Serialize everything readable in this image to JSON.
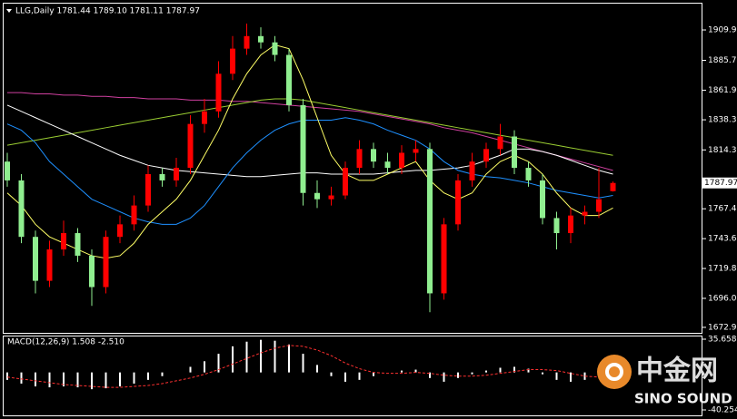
{
  "chart_data": [
    {
      "type": "candlestick",
      "title": "LLG,Daily  1781.44 1789.10 1781.11 1787.97",
      "up_color": "#ff0000",
      "down_color": "#90ee90",
      "open": [
        1805,
        1790,
        1745,
        1710,
        1735,
        1748,
        1730,
        1705,
        1745,
        1755,
        1770,
        1795,
        1790,
        1800,
        1835,
        1845,
        1875,
        1895,
        1905,
        1900,
        1890,
        1850,
        1780,
        1775,
        1778,
        1800,
        1815,
        1805,
        1800,
        1812,
        1815,
        1700,
        1755,
        1790,
        1805,
        1815,
        1825,
        1800,
        1790,
        1760,
        1748,
        1762,
        1765,
        1781.44
      ],
      "high": [
        1812,
        1795,
        1750,
        1742,
        1758,
        1752,
        1735,
        1750,
        1762,
        1778,
        1802,
        1800,
        1808,
        1842,
        1855,
        1885,
        1905,
        1915,
        1912,
        1905,
        1895,
        1855,
        1790,
        1785,
        1805,
        1822,
        1820,
        1812,
        1818,
        1822,
        1820,
        1760,
        1795,
        1812,
        1820,
        1835,
        1830,
        1805,
        1795,
        1765,
        1768,
        1770,
        1800,
        1789.1
      ],
      "low": [
        1785,
        1740,
        1700,
        1705,
        1730,
        1725,
        1690,
        1700,
        1740,
        1750,
        1765,
        1785,
        1785,
        1795,
        1828,
        1840,
        1870,
        1890,
        1895,
        1885,
        1845,
        1770,
        1768,
        1770,
        1775,
        1795,
        1800,
        1795,
        1795,
        1805,
        1685,
        1695,
        1750,
        1785,
        1800,
        1810,
        1795,
        1785,
        1755,
        1735,
        1740,
        1755,
        1760,
        1781.11
      ],
      "close": [
        1790,
        1745,
        1710,
        1735,
        1748,
        1730,
        1705,
        1745,
        1755,
        1770,
        1795,
        1790,
        1800,
        1835,
        1845,
        1875,
        1895,
        1905,
        1900,
        1890,
        1850,
        1780,
        1775,
        1778,
        1800,
        1815,
        1805,
        1800,
        1812,
        1815,
        1700,
        1755,
        1790,
        1805,
        1815,
        1825,
        1800,
        1790,
        1760,
        1748,
        1762,
        1765,
        1775,
        1787.97
      ],
      "series": [
        {
          "color": "#d040a0",
          "values": [
            1860,
            1860,
            1859,
            1859,
            1858,
            1858,
            1857,
            1857,
            1856,
            1856,
            1855,
            1855,
            1855,
            1854,
            1854,
            1854,
            1853,
            1853,
            1852,
            1851,
            1850,
            1849,
            1848,
            1847,
            1846,
            1845,
            1843,
            1841,
            1839,
            1837,
            1835,
            1832,
            1830,
            1828,
            1825,
            1822,
            1819,
            1816,
            1813,
            1810,
            1807,
            1804,
            1801,
            1798
          ]
        },
        {
          "color": "#9acd32",
          "values": [
            1818,
            1820,
            1822,
            1824,
            1826,
            1828,
            1830,
            1832,
            1834,
            1836,
            1838,
            1840,
            1842,
            1844,
            1846,
            1848,
            1850,
            1852,
            1854,
            1855,
            1855,
            1854,
            1852,
            1850,
            1848,
            1846,
            1844,
            1842,
            1840,
            1838,
            1836,
            1834,
            1832,
            1830,
            1828,
            1826,
            1824,
            1822,
            1820,
            1818,
            1816,
            1814,
            1812,
            1810
          ]
        },
        {
          "color": "#ffffff",
          "values": [
            1850,
            1845,
            1840,
            1835,
            1830,
            1825,
            1820,
            1815,
            1810,
            1806,
            1802,
            1800,
            1798,
            1797,
            1796,
            1795,
            1794,
            1793,
            1793,
            1794,
            1795,
            1796,
            1796,
            1795,
            1795,
            1795,
            1795,
            1796,
            1797,
            1798,
            1798,
            1799,
            1800,
            1802,
            1806,
            1810,
            1815,
            1815,
            1813,
            1810,
            1806,
            1802,
            1798,
            1795
          ]
        },
        {
          "color": "#1e90ff",
          "values": [
            1835,
            1830,
            1820,
            1805,
            1795,
            1785,
            1775,
            1770,
            1765,
            1760,
            1757,
            1755,
            1755,
            1760,
            1770,
            1785,
            1800,
            1812,
            1822,
            1830,
            1835,
            1838,
            1838,
            1838,
            1840,
            1838,
            1835,
            1830,
            1826,
            1822,
            1815,
            1805,
            1798,
            1795,
            1793,
            1792,
            1790,
            1788,
            1785,
            1782,
            1780,
            1778,
            1776,
            1778
          ]
        },
        {
          "color": "#ffff66",
          "values": [
            1780,
            1770,
            1755,
            1745,
            1740,
            1735,
            1730,
            1728,
            1730,
            1740,
            1755,
            1765,
            1775,
            1790,
            1810,
            1830,
            1855,
            1875,
            1890,
            1898,
            1895,
            1870,
            1840,
            1810,
            1795,
            1790,
            1790,
            1795,
            1800,
            1805,
            1790,
            1780,
            1775,
            1780,
            1795,
            1805,
            1810,
            1805,
            1795,
            1780,
            1768,
            1762,
            1762,
            1768
          ]
        }
      ],
      "ylim": [
        1667.8,
        1931.6
      ],
      "yticks": [
        {
          "value": 1909.9,
          "label": "1909.90"
        },
        {
          "value": 1885.7,
          "label": "1885.70"
        },
        {
          "value": 1861.9,
          "label": "1861.90"
        },
        {
          "value": 1838.3,
          "label": "1838.30"
        },
        {
          "value": 1814.3,
          "label": "1814.30"
        },
        {
          "value": 1767.4,
          "label": "1767.40"
        },
        {
          "value": 1743.6,
          "label": "1743.60"
        },
        {
          "value": 1719.8,
          "label": "1719.80"
        },
        {
          "value": 1696,
          "label": "1696.00"
        },
        {
          "value": 1672.9,
          "label": "1672.90"
        }
      ]
    },
    {
      "type": "macd",
      "title": "MACD(12,26,9) 1.508 -2.510",
      "histogram": {
        "color": "#ffffff",
        "values": [
          -8,
          -12,
          -15,
          -16,
          -15,
          -16,
          -18,
          -17,
          -15,
          -12,
          -8,
          -4,
          0,
          6,
          12,
          20,
          28,
          33,
          35,
          34,
          30,
          20,
          8,
          -4,
          -10,
          -8,
          -4,
          0,
          2,
          3,
          -6,
          -10,
          -6,
          -2,
          2,
          5,
          6,
          4,
          -2,
          -8,
          -10,
          -8,
          -4,
          1.508
        ]
      },
      "signal": {
        "color": "#ff3030",
        "values": [
          -5,
          -7,
          -9,
          -11,
          -13,
          -14,
          -15,
          -16,
          -16,
          -15,
          -14,
          -12,
          -9,
          -6,
          -2,
          3,
          9,
          15,
          21,
          26,
          29,
          28,
          24,
          18,
          10,
          4,
          0,
          -1,
          -1,
          0,
          -1,
          -3,
          -4,
          -4,
          -3,
          -1,
          1,
          3,
          3,
          2,
          -1,
          -4,
          -5,
          -2.51
        ]
      },
      "ylim": [
        -40.254,
        35.658
      ],
      "yticks": [
        35.658,
        -40.254
      ]
    }
  ],
  "watermark": {
    "brand": "中金网",
    "sub": "SINO SOUND"
  }
}
